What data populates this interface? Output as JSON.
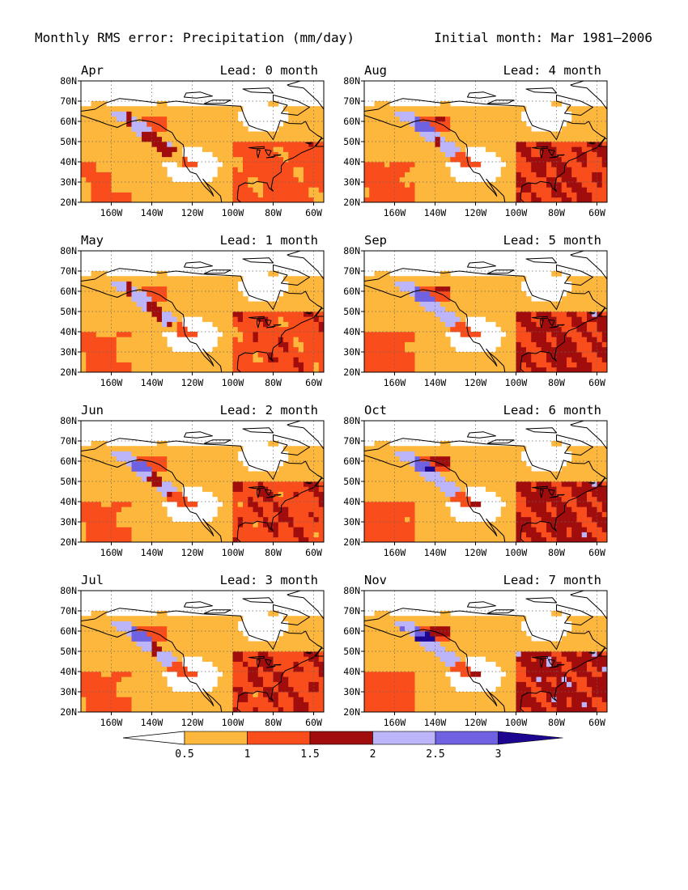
{
  "figure": {
    "title_left": "Monthly RMS error: Precipitation (mm/day)",
    "title_right": "Initial month: Mar 1981–2006"
  },
  "map_extent": {
    "lon_min": -175,
    "lon_max": -55,
    "lat_min": 20,
    "lat_max": 80
  },
  "axes": {
    "lat_ticks": [
      {
        "value": 20,
        "label": "20N"
      },
      {
        "value": 30,
        "label": "30N"
      },
      {
        "value": 40,
        "label": "40N"
      },
      {
        "value": 50,
        "label": "50N"
      },
      {
        "value": 60,
        "label": "60N"
      },
      {
        "value": 70,
        "label": "70N"
      },
      {
        "value": 80,
        "label": "80N"
      }
    ],
    "lon_ticks": [
      {
        "value": -160,
        "label": "160W"
      },
      {
        "value": -140,
        "label": "140W"
      },
      {
        "value": -120,
        "label": "120W"
      },
      {
        "value": -100,
        "label": "100W"
      },
      {
        "value": -80,
        "label": "80W"
      },
      {
        "value": -60,
        "label": "60W"
      }
    ]
  },
  "panels": [
    {
      "month": "Apr",
      "lead": "Lead: 0 month",
      "level": 1
    },
    {
      "month": "Aug",
      "lead": "Lead: 4 month",
      "level": 1.6
    },
    {
      "month": "May",
      "lead": "Lead: 1 month",
      "level": 1.2
    },
    {
      "month": "Sep",
      "lead": "Lead: 5 month",
      "level": 1.8
    },
    {
      "month": "Jun",
      "lead": "Lead: 2 month",
      "level": 1.4
    },
    {
      "month": "Oct",
      "lead": "Lead: 6 month",
      "level": 1.9
    },
    {
      "month": "Jul",
      "lead": "Lead: 3 month",
      "level": 1.5
    },
    {
      "month": "Nov",
      "lead": "Lead: 7 month",
      "level": 2.0
    }
  ],
  "colorbar": {
    "labels": [
      "0.5",
      "1",
      "1.5",
      "2",
      "2.5",
      "3"
    ],
    "colors": [
      "#ffffff",
      "#fdb73d",
      "#f94d1c",
      "#a10d0d",
      "#bcb5fa",
      "#6e62e2",
      "#1c0591"
    ]
  }
}
